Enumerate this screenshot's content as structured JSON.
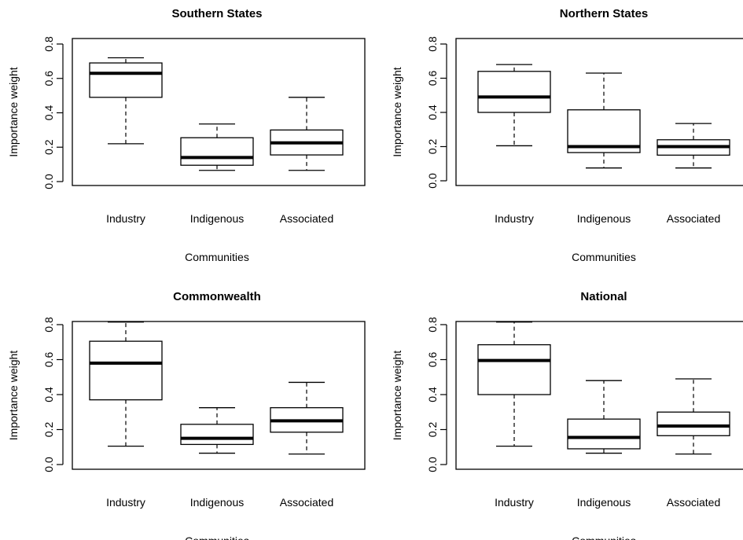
{
  "chart_data": [
    {
      "type": "boxplot",
      "title": "Southern States",
      "xlabel": "Communities",
      "ylabel": "Importance weight",
      "ylim": [
        0,
        0.8
      ],
      "yticks": [
        "0.0",
        "0.2",
        "0.4",
        "0.6",
        "0.8"
      ],
      "categories": [
        "Industry",
        "Indigenous",
        "Associated"
      ],
      "boxes": [
        {
          "min": 0.22,
          "q1": 0.49,
          "median": 0.63,
          "q3": 0.69,
          "max": 0.72
        },
        {
          "min": 0.065,
          "q1": 0.095,
          "median": 0.14,
          "q3": 0.255,
          "max": 0.335
        },
        {
          "min": 0.065,
          "q1": 0.155,
          "median": 0.225,
          "q3": 0.3,
          "max": 0.49
        }
      ]
    },
    {
      "type": "boxplot",
      "title": "Northern States",
      "xlabel": "Communities",
      "ylabel": "Importance weight",
      "ylim": [
        0,
        0.8
      ],
      "yticks": [
        "0.0",
        "0.2",
        "0.4",
        "0.6",
        "0.8"
      ],
      "categories": [
        "Industry",
        "Indigenous",
        "Associated"
      ],
      "boxes": [
        {
          "min": 0.205,
          "q1": 0.4,
          "median": 0.49,
          "q3": 0.64,
          "max": 0.68
        },
        {
          "min": 0.075,
          "q1": 0.165,
          "median": 0.2,
          "q3": 0.415,
          "max": 0.63
        },
        {
          "min": 0.075,
          "q1": 0.15,
          "median": 0.2,
          "q3": 0.24,
          "max": 0.335
        }
      ]
    },
    {
      "type": "boxplot",
      "title": "Commonwealth",
      "xlabel": "Communities",
      "ylabel": "Importance weight",
      "ylim": [
        0,
        0.8
      ],
      "yticks": [
        "0.0",
        "0.2",
        "0.4",
        "0.6",
        "0.8"
      ],
      "categories": [
        "Industry",
        "Indigenous",
        "Associated"
      ],
      "boxes": [
        {
          "min": 0.105,
          "q1": 0.37,
          "median": 0.58,
          "q3": 0.705,
          "max": 0.815
        },
        {
          "min": 0.065,
          "q1": 0.115,
          "median": 0.15,
          "q3": 0.23,
          "max": 0.325
        },
        {
          "min": 0.06,
          "q1": 0.185,
          "median": 0.25,
          "q3": 0.325,
          "max": 0.47
        }
      ]
    },
    {
      "type": "boxplot",
      "title": "National",
      "xlabel": "Communities",
      "ylabel": "Importance weight",
      "ylim": [
        0,
        0.8
      ],
      "yticks": [
        "0.0",
        "0.2",
        "0.4",
        "0.6",
        "0.8"
      ],
      "categories": [
        "Industry",
        "Indigenous",
        "Associated"
      ],
      "boxes": [
        {
          "min": 0.105,
          "q1": 0.4,
          "median": 0.595,
          "q3": 0.685,
          "max": 0.815
        },
        {
          "min": 0.065,
          "q1": 0.09,
          "median": 0.155,
          "q3": 0.26,
          "max": 0.48
        },
        {
          "min": 0.06,
          "q1": 0.165,
          "median": 0.22,
          "q3": 0.3,
          "max": 0.49
        }
      ]
    }
  ]
}
